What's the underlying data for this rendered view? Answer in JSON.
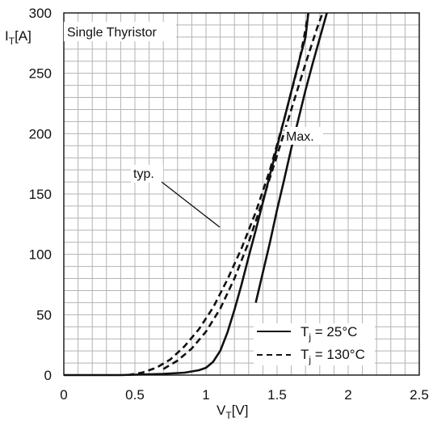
{
  "chart_data": {
    "type": "line",
    "title": "Single Thyristor",
    "xlabel": {
      "main": "V",
      "sub": "T",
      "unit": "[V]"
    },
    "ylabel": {
      "main": "I",
      "sub": "T",
      "unit": "[A]"
    },
    "xlim": [
      0,
      2.5
    ],
    "ylim": [
      0,
      300
    ],
    "x_ticks": [
      "0",
      "0.5",
      "1",
      "1.5",
      "2",
      "2.5"
    ],
    "y_ticks": [
      "0",
      "50",
      "100",
      "150",
      "200",
      "250",
      "300"
    ],
    "grid": true,
    "legend_position": "bottom-right",
    "annotations": {
      "typ": "typ.",
      "max": "Max."
    },
    "series": [
      {
        "name": {
          "main": "T",
          "sub": "j",
          "rest": " = 25°C"
        },
        "style": "solid",
        "curves": [
          {
            "label": "typ.",
            "points": [
              [
                0,
                0
              ],
              [
                0.4,
                0
              ],
              [
                0.7,
                1
              ],
              [
                0.85,
                2
              ],
              [
                0.95,
                4
              ],
              [
                1.0,
                6
              ],
              [
                1.05,
                11
              ],
              [
                1.1,
                20
              ],
              [
                1.15,
                35
              ],
              [
                1.2,
                54
              ],
              [
                1.25,
                75
              ],
              [
                1.3,
                98
              ],
              [
                1.35,
                120
              ],
              [
                1.4,
                143
              ],
              [
                1.45,
                166
              ],
              [
                1.5,
                189
              ],
              [
                1.55,
                212
              ],
              [
                1.6,
                235
              ],
              [
                1.65,
                258
              ],
              [
                1.7,
                280
              ],
              [
                1.72,
                300
              ]
            ]
          },
          {
            "label": "Max.",
            "points": [
              [
                1.35,
                60
              ],
              [
                1.4,
                85
              ],
              [
                1.45,
                110
              ],
              [
                1.5,
                137
              ],
              [
                1.55,
                162
              ],
              [
                1.6,
                188
              ],
              [
                1.65,
                212
              ],
              [
                1.7,
                236
              ],
              [
                1.75,
                258
              ],
              [
                1.8,
                279
              ],
              [
                1.85,
                300
              ]
            ]
          }
        ]
      },
      {
        "name": {
          "main": "T",
          "sub": "j",
          "rest": " = 130°C"
        },
        "style": "dashed",
        "curves": [
          {
            "label": "typ.",
            "points": [
              [
                0.45,
                0
              ],
              [
                0.55,
                2
              ],
              [
                0.65,
                6
              ],
              [
                0.75,
                13
              ],
              [
                0.85,
                24
              ],
              [
                0.95,
                38
              ],
              [
                1.05,
                56
              ],
              [
                1.15,
                79
              ],
              [
                1.25,
                105
              ],
              [
                1.35,
                135
              ],
              [
                1.45,
                170
              ],
              [
                1.55,
                212
              ],
              [
                1.65,
                257
              ],
              [
                1.69,
                280
              ],
              [
                1.72,
                300
              ]
            ]
          },
          {
            "label": "Max.",
            "points": [
              [
                0.7,
                5
              ],
              [
                0.8,
                12
              ],
              [
                0.9,
                22
              ],
              [
                1.0,
                36
              ],
              [
                1.1,
                55
              ],
              [
                1.2,
                80
              ],
              [
                1.3,
                110
              ],
              [
                1.4,
                145
              ],
              [
                1.5,
                182
              ],
              [
                1.6,
                220
              ],
              [
                1.7,
                258
              ],
              [
                1.78,
                287
              ],
              [
                1.82,
                300
              ]
            ]
          }
        ]
      }
    ]
  }
}
